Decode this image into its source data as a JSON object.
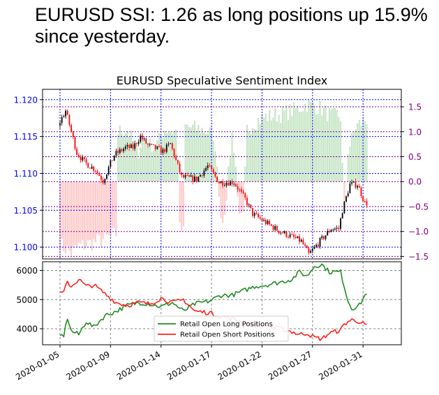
{
  "headline": "EURUSD SSI: 1.26 as long positions up 15.9% since yesterday.",
  "chart_data": [
    {
      "type": "candlestick+bar",
      "title": "EURUSD Speculative Sentiment Index",
      "grid": "dotted",
      "colors": {
        "price_axis": "#0000ff",
        "ssi_axis": "#800080",
        "up_candle": "#000000",
        "down_candle": "#ff0000",
        "long_bars": "#c8e6c8",
        "short_bars": "#ffcccc"
      },
      "price_axis": {
        "side": "left",
        "ylim": [
          1.0984,
          1.1214
        ],
        "ticks": [
          1.1,
          1.105,
          1.11,
          1.115,
          1.12
        ],
        "tick_labels": [
          "1.100",
          "1.105",
          "1.110",
          "1.115",
          "1.120"
        ]
      },
      "ssi_axis": {
        "side": "right",
        "ylim": [
          -1.55,
          1.85
        ],
        "ticks": [
          1.5,
          1.0,
          0.5,
          0.0,
          -0.5,
          -1.0,
          -1.5
        ],
        "tick_labels": [
          "1.5",
          "1.0",
          "0.5",
          "0.0",
          "−0.5",
          "−1.0",
          "−1.5"
        ]
      },
      "price_keypoints": [
        [
          0,
          1.1165
        ],
        [
          4,
          1.1185
        ],
        [
          10,
          1.1128
        ],
        [
          14,
          1.1115
        ],
        [
          20,
          1.1105
        ],
        [
          24,
          1.109
        ],
        [
          30,
          1.1125
        ],
        [
          36,
          1.1135
        ],
        [
          40,
          1.1135
        ],
        [
          44,
          1.115
        ],
        [
          48,
          1.1138
        ],
        [
          56,
          1.113
        ],
        [
          60,
          1.114
        ],
        [
          63,
          1.1117
        ],
        [
          66,
          1.1095
        ],
        [
          74,
          1.1092
        ],
        [
          80,
          1.111
        ],
        [
          86,
          1.1088
        ],
        [
          94,
          1.1088
        ],
        [
          100,
          1.1065
        ],
        [
          104,
          1.1045
        ],
        [
          110,
          1.1035
        ],
        [
          118,
          1.1022
        ],
        [
          124,
          1.1015
        ],
        [
          130,
          1.1008
        ],
        [
          134,
          1.099
        ],
        [
          140,
          1.1008
        ],
        [
          146,
          1.1025
        ],
        [
          150,
          1.1025
        ],
        [
          152,
          1.105
        ],
        [
          156,
          1.1085
        ],
        [
          160,
          1.1085
        ],
        [
          164,
          1.106
        ]
      ],
      "ssi_keypoints": [
        [
          0,
          -1.27
        ],
        [
          6,
          -1.42
        ],
        [
          10,
          -1.3
        ],
        [
          20,
          -1.2
        ],
        [
          30,
          -1.05
        ],
        [
          31,
          1.0
        ],
        [
          36,
          1.05
        ],
        [
          42,
          0.55
        ],
        [
          44,
          0.95
        ],
        [
          50,
          0.65
        ],
        [
          56,
          1.05
        ],
        [
          62,
          1.0
        ],
        [
          64,
          -0.95
        ],
        [
          66,
          -1.02
        ],
        [
          67,
          1.1
        ],
        [
          76,
          1.05
        ],
        [
          82,
          0.95
        ],
        [
          86,
          -0.65
        ],
        [
          88,
          -0.8
        ],
        [
          92,
          1.0
        ],
        [
          96,
          -0.75
        ],
        [
          98,
          -0.7
        ],
        [
          100,
          1.05
        ],
        [
          104,
          1.2
        ],
        [
          110,
          1.3
        ],
        [
          118,
          1.35
        ],
        [
          126,
          1.45
        ],
        [
          132,
          1.55
        ],
        [
          138,
          1.5
        ],
        [
          146,
          1.3
        ],
        [
          148,
          1.35
        ],
        [
          150,
          1.3
        ],
        [
          152,
          -0.6
        ],
        [
          154,
          0.6
        ],
        [
          158,
          1.1
        ],
        [
          164,
          1.26
        ]
      ]
    },
    {
      "type": "line",
      "ylim": [
        3450,
        6300
      ],
      "yticks": [
        4000,
        5000,
        6000
      ],
      "ytick_labels": [
        "4000",
        "5000",
        "6000"
      ],
      "x_tick_labels": [
        "2020-01-05",
        "2020-01-09",
        "2020-01-14",
        "2020-01-17",
        "2020-01-22",
        "2020-01-27",
        "2020-01-31"
      ],
      "legend_position": "lower-center",
      "series": [
        {
          "name": "Retail Open Long Positions",
          "color": "#228b22",
          "keypoints": [
            [
              0,
              3750
            ],
            [
              2,
              3780
            ],
            [
              4,
              4380
            ],
            [
              6,
              3920
            ],
            [
              10,
              3800
            ],
            [
              14,
              4250
            ],
            [
              18,
              4050
            ],
            [
              24,
              4450
            ],
            [
              30,
              4600
            ],
            [
              36,
              4800
            ],
            [
              42,
              4900
            ],
            [
              48,
              4850
            ],
            [
              54,
              4750
            ],
            [
              60,
              4900
            ],
            [
              64,
              4700
            ],
            [
              66,
              4600
            ],
            [
              72,
              4850
            ],
            [
              80,
              4950
            ],
            [
              86,
              5150
            ],
            [
              92,
              5150
            ],
            [
              98,
              5300
            ],
            [
              104,
              5450
            ],
            [
              110,
              5500
            ],
            [
              118,
              5600
            ],
            [
              124,
              5700
            ],
            [
              128,
              5950
            ],
            [
              132,
              5800
            ],
            [
              136,
              6150
            ],
            [
              140,
              6200
            ],
            [
              144,
              5950
            ],
            [
              150,
              5950
            ],
            [
              152,
              5450
            ],
            [
              154,
              4950
            ],
            [
              156,
              4700
            ],
            [
              160,
              4800
            ],
            [
              164,
              5250
            ]
          ]
        },
        {
          "name": "Retail Open Short Positions",
          "color": "#ff2020",
          "keypoints": [
            [
              0,
              5200
            ],
            [
              2,
              5250
            ],
            [
              4,
              5600
            ],
            [
              6,
              5450
            ],
            [
              10,
              5700
            ],
            [
              14,
              5450
            ],
            [
              18,
              5500
            ],
            [
              24,
              5200
            ],
            [
              30,
              4900
            ],
            [
              36,
              4800
            ],
            [
              42,
              4900
            ],
            [
              48,
              4850
            ],
            [
              54,
              5050
            ],
            [
              60,
              4900
            ],
            [
              64,
              4950
            ],
            [
              66,
              5000
            ],
            [
              72,
              4600
            ],
            [
              80,
              4550
            ],
            [
              86,
              4400
            ],
            [
              92,
              4350
            ],
            [
              98,
              4200
            ],
            [
              104,
              4150
            ],
            [
              110,
              4100
            ],
            [
              118,
              4000
            ],
            [
              124,
              3900
            ],
            [
              128,
              3800
            ],
            [
              132,
              3850
            ],
            [
              136,
              3700
            ],
            [
              140,
              3650
            ],
            [
              144,
              3850
            ],
            [
              150,
              3950
            ],
            [
              152,
              4150
            ],
            [
              154,
              4250
            ],
            [
              156,
              4300
            ],
            [
              160,
              4250
            ],
            [
              164,
              4100
            ]
          ]
        }
      ]
    }
  ]
}
